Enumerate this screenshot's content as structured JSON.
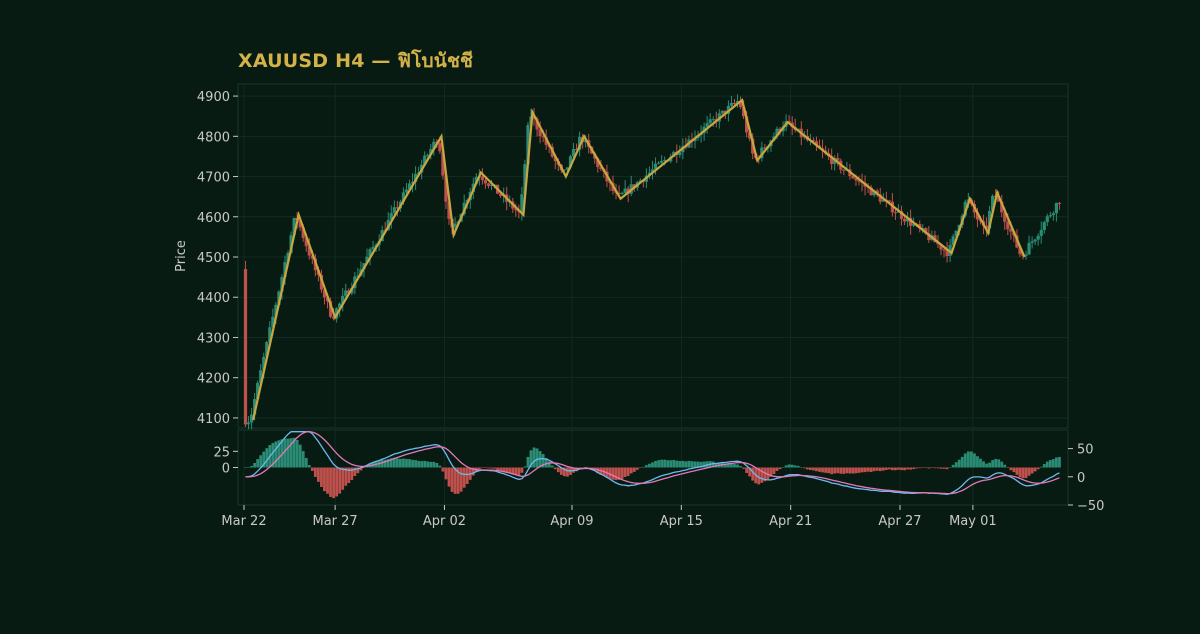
{
  "chart_data": {
    "type": "candlestick",
    "title": "XAUUSD H4 — ฟิโบนัชชี",
    "ylabel": "Price",
    "ylim": [
      4075,
      4930
    ],
    "yticks": [
      4100,
      4200,
      4300,
      4400,
      4500,
      4600,
      4700,
      4800,
      4900
    ],
    "x_range": [
      "2025-03-22",
      "2025-05-06"
    ],
    "xticks": [
      {
        "date": "2025-03-22",
        "label": "Mar 22"
      },
      {
        "date": "2025-03-27",
        "label": "Mar 27"
      },
      {
        "date": "2025-04-02",
        "label": "Apr 02"
      },
      {
        "date": "2025-04-09",
        "label": "Apr 09"
      },
      {
        "date": "2025-04-15",
        "label": "Apr 15"
      },
      {
        "date": "2025-04-21",
        "label": "Apr 21"
      },
      {
        "date": "2025-04-27",
        "label": "Apr 27"
      },
      {
        "date": "2025-05-01",
        "label": "May 01"
      }
    ],
    "colors": {
      "background": "#081b12",
      "up": "#2a8c74",
      "down": "#c0504c",
      "zigzag": "#c9a640",
      "macd": "#6fb8f0",
      "signal": "#e07ab8",
      "text": "#c8c8c8",
      "title": "#d4b24a",
      "grid": "#17342a"
    },
    "grid": true,
    "zigzag": [
      {
        "date": "2025-03-22T12:00",
        "price": 4095
      },
      {
        "date": "2025-03-25T00:00",
        "price": 4605
      },
      {
        "date": "2025-03-27T00:00",
        "price": 4350
      },
      {
        "date": "2025-04-01T20:00",
        "price": 4800
      },
      {
        "date": "2025-04-02T12:00",
        "price": 4555
      },
      {
        "date": "2025-04-04T00:00",
        "price": 4710
      },
      {
        "date": "2025-04-06T08:00",
        "price": 4605
      },
      {
        "date": "2025-04-06T20:00",
        "price": 4860
      },
      {
        "date": "2025-04-08T16:00",
        "price": 4700
      },
      {
        "date": "2025-04-09T16:00",
        "price": 4800
      },
      {
        "date": "2025-04-11T16:00",
        "price": 4645
      },
      {
        "date": "2025-04-18T08:00",
        "price": 4890
      },
      {
        "date": "2025-04-19T04:00",
        "price": 4740
      },
      {
        "date": "2025-04-20T20:00",
        "price": 4835
      },
      {
        "date": "2025-04-29T20:00",
        "price": 4510
      },
      {
        "date": "2025-04-30T20:00",
        "price": 4645
      },
      {
        "date": "2025-05-01T20:00",
        "price": 4560
      },
      {
        "date": "2025-05-02T08:00",
        "price": 4660
      },
      {
        "date": "2025-05-03T20:00",
        "price": 4500
      }
    ],
    "macd_panel": {
      "left_ticks": [
        25,
        0
      ],
      "left_range": [
        -58,
        58
      ],
      "right_ticks": [
        50,
        0,
        -50
      ],
      "right_range": [
        -50,
        83
      ]
    }
  }
}
